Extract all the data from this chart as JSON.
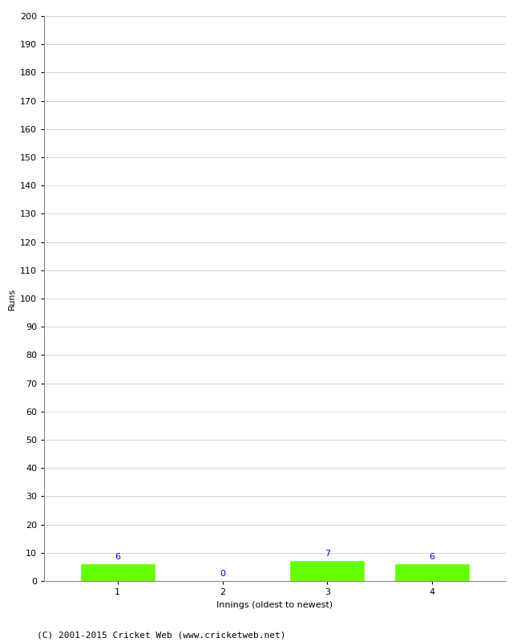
{
  "innings": [
    1,
    2,
    3,
    4
  ],
  "runs": [
    6,
    0,
    7,
    6
  ],
  "bar_color": "#66ff00",
  "bar_edge_color": "#66ff00",
  "label_color": "#0000cc",
  "ylabel": "Runs",
  "xlabel": "Innings (oldest to newest)",
  "ylim": [
    0,
    200
  ],
  "ytick_step": 10,
  "copyright": "(C) 2001-2015 Cricket Web (www.cricketweb.net)",
  "background_color": "#ffffff",
  "grid_color": "#cccccc",
  "label_fontsize": 8,
  "axis_fontsize": 8,
  "copyright_fontsize": 8,
  "bar_width": 0.7
}
